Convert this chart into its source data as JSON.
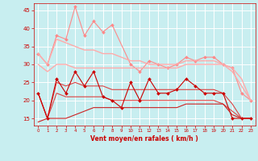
{
  "x": [
    0,
    1,
    2,
    3,
    4,
    5,
    6,
    7,
    8,
    9,
    10,
    11,
    12,
    13,
    14,
    15,
    16,
    17,
    18,
    19,
    20,
    21,
    22,
    23
  ],
  "series": [
    {
      "name": "max_gust",
      "color": "#ff8888",
      "linewidth": 0.8,
      "marker": "D",
      "markersize": 2.0,
      "values": [
        33,
        30,
        38,
        37,
        46,
        38,
        42,
        39,
        41,
        null,
        30,
        28,
        31,
        30,
        29,
        30,
        32,
        31,
        32,
        32,
        30,
        29,
        22,
        20
      ]
    },
    {
      "name": "mean_upper",
      "color": "#ffaaaa",
      "linewidth": 1.0,
      "marker": null,
      "markersize": 0,
      "values": [
        33,
        30,
        37,
        36,
        35,
        34,
        34,
        33,
        33,
        32,
        31,
        31,
        30,
        30,
        30,
        30,
        31,
        31,
        31,
        31,
        30,
        29,
        26,
        20
      ]
    },
    {
      "name": "mean_lower",
      "color": "#ffaaaa",
      "linewidth": 1.0,
      "marker": null,
      "markersize": 0,
      "values": [
        30,
        28,
        30,
        30,
        29,
        29,
        29,
        29,
        29,
        29,
        29,
        29,
        29,
        29,
        29,
        29,
        30,
        30,
        30,
        30,
        30,
        28,
        24,
        20
      ]
    },
    {
      "name": "wind_upper_band",
      "color": "#dd4444",
      "linewidth": 0.8,
      "marker": null,
      "markersize": 0,
      "values": [
        22,
        15,
        25,
        24,
        25,
        24,
        24,
        24,
        23,
        23,
        23,
        23,
        23,
        23,
        23,
        23,
        23,
        23,
        23,
        23,
        22,
        19,
        15,
        15
      ]
    },
    {
      "name": "wind_lower_band",
      "color": "#dd4444",
      "linewidth": 0.8,
      "marker": null,
      "markersize": 0,
      "values": [
        22,
        15,
        22,
        21,
        21,
        21,
        21,
        21,
        20,
        20,
        20,
        20,
        20,
        20,
        20,
        20,
        20,
        20,
        20,
        20,
        19,
        17,
        15,
        15
      ]
    },
    {
      "name": "wind_speed",
      "color": "#cc0000",
      "linewidth": 0.8,
      "marker": "D",
      "markersize": 2.0,
      "values": [
        22,
        15,
        26,
        22,
        28,
        24,
        28,
        21,
        20,
        18,
        25,
        20,
        26,
        22,
        22,
        23,
        26,
        24,
        22,
        22,
        22,
        15,
        15,
        15
      ]
    },
    {
      "name": "wind_min",
      "color": "#cc2222",
      "linewidth": 0.8,
      "marker": null,
      "markersize": 0,
      "values": [
        14,
        15,
        15,
        15,
        16,
        17,
        18,
        18,
        18,
        18,
        18,
        18,
        18,
        18,
        18,
        18,
        19,
        19,
        19,
        19,
        19,
        16,
        15,
        15
      ]
    }
  ],
  "xlim": [
    -0.5,
    23.5
  ],
  "ylim": [
    13,
    47
  ],
  "yticks": [
    15,
    20,
    25,
    30,
    35,
    40,
    45
  ],
  "xticks": [
    0,
    1,
    2,
    3,
    4,
    5,
    6,
    7,
    8,
    9,
    10,
    11,
    12,
    13,
    14,
    15,
    16,
    17,
    18,
    19,
    20,
    21,
    22,
    23
  ],
  "xlabel": "Vent moyen/en rafales ( km/h )",
  "background_color": "#c8eef0",
  "grid_color": "#ffffff",
  "tick_color": "#cc0000",
  "label_color": "#cc0000"
}
